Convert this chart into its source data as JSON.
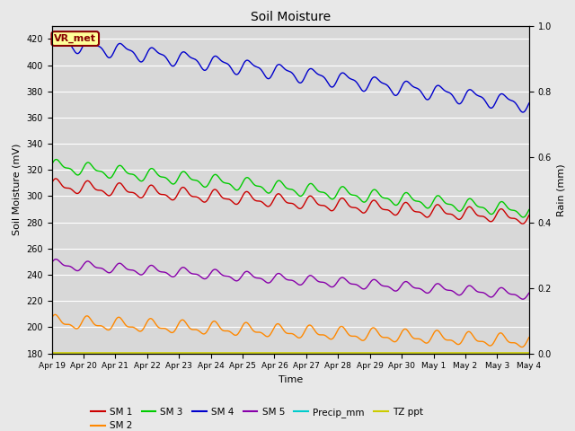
{
  "title": "Soil Moisture",
  "xlabel": "Time",
  "ylabel_left": "Soil Moisture (mV)",
  "ylabel_right": "Rain (mm)",
  "ylim_left": [
    180,
    430
  ],
  "ylim_right": [
    0.0,
    1.0
  ],
  "yticks_left": [
    180,
    200,
    220,
    240,
    260,
    280,
    300,
    320,
    340,
    360,
    380,
    400,
    420
  ],
  "yticks_right": [
    0.0,
    0.2,
    0.4,
    0.6,
    0.8,
    1.0
  ],
  "xtick_labels": [
    "Apr 19",
    "Apr 20",
    "Apr 21",
    "Apr 22",
    "Apr 23",
    "Apr 24",
    "Apr 25",
    "Apr 26",
    "Apr 27",
    "Apr 28",
    "Apr 29",
    "Apr 30",
    "May 1",
    "May 2",
    "May 3",
    "May 4"
  ],
  "n_days": 15,
  "colors": {
    "SM1": "#cc0000",
    "SM2": "#ff8800",
    "SM3": "#00cc00",
    "SM4": "#0000cc",
    "SM5": "#8800aa",
    "Precip_mm": "#00cccc",
    "TZ_ppt": "#cccc00"
  },
  "background_color": "#e8e8e8",
  "plot_bg": "#d8d8d8",
  "annotation_box_color": "#ffff99",
  "annotation_text_color": "#880000",
  "annotation_text": "VR_met"
}
